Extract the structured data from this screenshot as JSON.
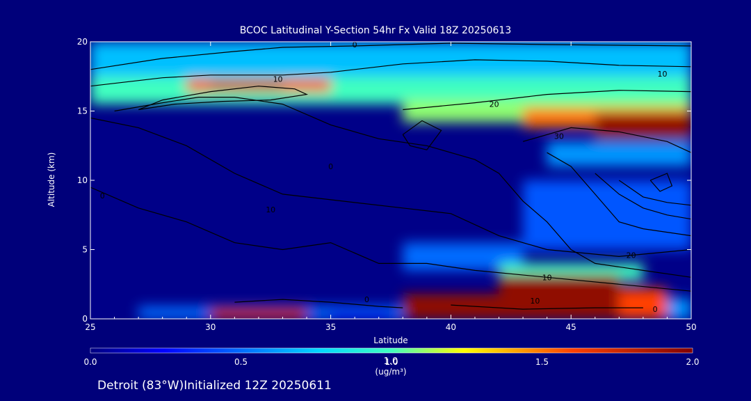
{
  "chart_data": {
    "type": "heatmap",
    "title": "BCOC Latitudinal Y-Section 54hr  Fx Valid 18Z 20250613",
    "xlabel": "Latitude",
    "ylabel": "Altitude (km)",
    "xlim": [
      25,
      50
    ],
    "ylim": [
      0,
      20
    ],
    "xticks": [
      25,
      30,
      35,
      40,
      45,
      50
    ],
    "yticks": [
      0,
      5,
      10,
      15,
      20
    ],
    "colorbar": {
      "min": 0.0,
      "max": 2.0,
      "ticks": [
        "0.0",
        "0.5",
        "1.0",
        "1.5",
        "2.0"
      ],
      "unit_line1": "1.0",
      "unit_line2": "(ug/m³)"
    },
    "contour_labels": [
      "0",
      "10",
      "10",
      "20",
      "30",
      "0",
      "10",
      "0",
      "20",
      "10",
      "0",
      "0",
      "10"
    ],
    "regions": [
      {
        "x0": 25,
        "x1": 50,
        "y0": 16.5,
        "y1": 20,
        "value": 0.7
      },
      {
        "x0": 25,
        "x1": 50,
        "y0": 15.5,
        "y1": 17.5,
        "value": 1.0
      },
      {
        "x0": 29,
        "x1": 35,
        "y0": 16.4,
        "y1": 17.3,
        "value": 1.6
      },
      {
        "x0": 30,
        "x1": 33,
        "y0": 16.6,
        "y1": 17.1,
        "value": 1.85
      },
      {
        "x0": 38,
        "x1": 50,
        "y0": 14.2,
        "y1": 15.8,
        "value": 1.1
      },
      {
        "x0": 43,
        "x1": 50,
        "y0": 13.8,
        "y1": 15.2,
        "value": 1.5
      },
      {
        "x0": 46,
        "x1": 50,
        "y0": 13.0,
        "y1": 14.8,
        "value": 1.95
      },
      {
        "x0": 44,
        "x1": 50,
        "y0": 11.0,
        "y1": 12.8,
        "value": 0.6
      },
      {
        "x0": 43,
        "x1": 50,
        "y0": 5.0,
        "y1": 10.0,
        "value": 0.45
      },
      {
        "x0": 38,
        "x1": 43,
        "y0": 3.5,
        "y1": 5.5,
        "value": 0.5
      },
      {
        "x0": 42,
        "x1": 48,
        "y0": 2.8,
        "y1": 4.0,
        "value": 1.0
      },
      {
        "x0": 38,
        "x1": 48,
        "y0": 0,
        "y1": 1.8,
        "value": 1.95
      },
      {
        "x0": 42,
        "x1": 47,
        "y0": 0,
        "y1": 3.2,
        "value": 1.95
      },
      {
        "x0": 47,
        "x1": 49,
        "y0": 0,
        "y1": 2.2,
        "value": 1.6
      },
      {
        "x0": 49,
        "x1": 50,
        "y0": 0,
        "y1": 1.5,
        "value": 0.6
      },
      {
        "x0": 27,
        "x1": 38,
        "y0": 0,
        "y1": 0.9,
        "value": 0.5
      },
      {
        "x0": 30,
        "x1": 34,
        "y0": 0,
        "y1": 0.8,
        "value": 1.75
      },
      {
        "x0": 35,
        "x1": 37.5,
        "y0": 0,
        "y1": 0.5,
        "value": 0.3
      }
    ],
    "contours": [
      [
        [
          25,
          14.5
        ],
        [
          27,
          13.8
        ],
        [
          29,
          12.5
        ],
        [
          31,
          10.5
        ],
        [
          33,
          9
        ],
        [
          35,
          8.6
        ],
        [
          38,
          8
        ],
        [
          40,
          7.6
        ],
        [
          42,
          6
        ],
        [
          44,
          5
        ],
        [
          47,
          4.5
        ],
        [
          50,
          5
        ]
      ],
      [
        [
          25,
          9.5
        ],
        [
          27,
          8
        ],
        [
          29,
          7
        ],
        [
          31,
          5.5
        ],
        [
          33,
          5
        ],
        [
          35,
          5.5
        ],
        [
          37,
          4
        ],
        [
          39,
          4
        ],
        [
          41,
          3.5
        ],
        [
          44,
          3
        ],
        [
          47,
          2.5
        ],
        [
          50,
          2
        ]
      ],
      [
        [
          26,
          15
        ],
        [
          28,
          15.6
        ],
        [
          29.5,
          16
        ],
        [
          31,
          16
        ],
        [
          33,
          15.5
        ],
        [
          35,
          14
        ],
        [
          37,
          13
        ],
        [
          39,
          12.5
        ],
        [
          41,
          11.5
        ],
        [
          42,
          10.5
        ],
        [
          43,
          8.5
        ],
        [
          44,
          7
        ],
        [
          45,
          5
        ],
        [
          46,
          4
        ],
        [
          48,
          3.5
        ],
        [
          50,
          3
        ]
      ],
      [
        [
          25,
          16.8
        ],
        [
          28,
          17.4
        ],
        [
          30,
          17.6
        ],
        [
          33,
          17.6
        ],
        [
          35,
          17.8
        ],
        [
          38,
          18.4
        ],
        [
          41,
          18.7
        ],
        [
          44,
          18.6
        ],
        [
          47,
          18.3
        ],
        [
          50,
          18.2
        ]
      ],
      [
        [
          25,
          18
        ],
        [
          28,
          18.8
        ],
        [
          31,
          19.3
        ],
        [
          33,
          19.6
        ],
        [
          36,
          19.7
        ],
        [
          40,
          19.9
        ],
        [
          44,
          19.8
        ],
        [
          50,
          19.7
        ]
      ],
      [
        [
          38,
          15.1
        ],
        [
          41,
          15.6
        ],
        [
          44,
          16.2
        ],
        [
          47,
          16.5
        ],
        [
          50,
          16.4
        ]
      ],
      [
        [
          43,
          12.8
        ],
        [
          45,
          13.8
        ],
        [
          47,
          13.5
        ],
        [
          49,
          12.8
        ],
        [
          50,
          12
        ]
      ],
      [
        [
          44,
          12
        ],
        [
          45,
          11
        ],
        [
          46,
          9
        ],
        [
          47,
          7
        ],
        [
          48,
          6.5
        ],
        [
          50,
          6
        ]
      ],
      [
        [
          46,
          10.5
        ],
        [
          47,
          9
        ],
        [
          48,
          8
        ],
        [
          49,
          7.5
        ],
        [
          50,
          7.2
        ]
      ],
      [
        [
          47,
          10
        ],
        [
          48,
          8.8
        ],
        [
          49,
          8.4
        ],
        [
          50,
          8.2
        ]
      ],
      [
        [
          38,
          13.3
        ],
        [
          38.8,
          14.3
        ],
        [
          39.6,
          13.6
        ],
        [
          39,
          12.2
        ],
        [
          38.3,
          12.5
        ],
        [
          38,
          13.3
        ]
      ],
      [
        [
          48.3,
          10
        ],
        [
          49,
          10.5
        ],
        [
          49.2,
          9.6
        ],
        [
          48.7,
          9.2
        ],
        [
          48.3,
          10
        ]
      ],
      [
        [
          27,
          15.1
        ],
        [
          28,
          15.8
        ],
        [
          30,
          16.4
        ],
        [
          32,
          16.8
        ],
        [
          33.5,
          16.6
        ],
        [
          34,
          16.2
        ],
        [
          32.5,
          15.8
        ],
        [
          30.5,
          15.7
        ],
        [
          28.5,
          15.5
        ],
        [
          27,
          15.1
        ]
      ],
      [
        [
          31,
          1.2
        ],
        [
          33,
          1.4
        ],
        [
          35,
          1.2
        ],
        [
          37,
          0.9
        ],
        [
          38,
          0.8
        ]
      ],
      [
        [
          40,
          1.0
        ],
        [
          43,
          0.7
        ],
        [
          46,
          0.8
        ],
        [
          48,
          0.8
        ]
      ]
    ]
  }
}
